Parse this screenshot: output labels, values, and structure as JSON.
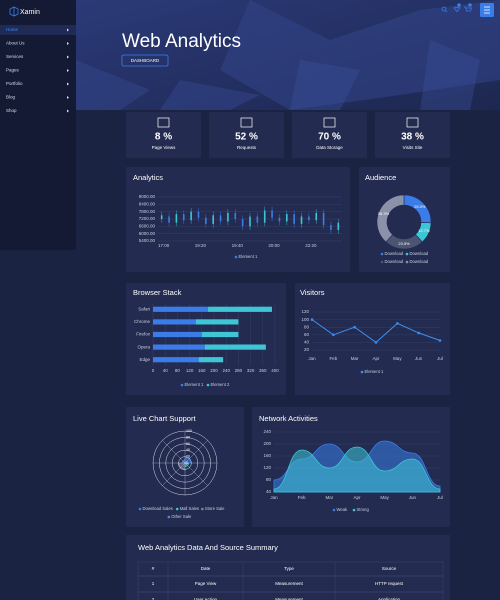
{
  "sidebar": {
    "brand": "Xamin",
    "menu": [
      "Home",
      "About Us",
      "Services",
      "Pages",
      "Portfolio",
      "Blog",
      "Shop"
    ]
  },
  "header": {
    "title": "Web Analytics",
    "button": "DASHBOARD"
  },
  "stats": {
    "labels": [
      "Page Views",
      "Requests",
      "Data Storage",
      "Visits Site"
    ],
    "values": [
      8,
      52,
      70,
      38
    ],
    "value_labels": [
      "8 %",
      "52 %",
      "70 %",
      "38 %"
    ]
  },
  "chart_data": [
    {
      "type": "candlestick",
      "title": "Analytics",
      "xtick_labels": [
        "17:00",
        "19:20",
        "19:40",
        "20:00",
        "22:20"
      ],
      "series": [
        {
          "name": "Element 1",
          "color": "#3b7de8",
          "up_color": "#3ec6d6",
          "down_color": "#3b7de8",
          "open": [
            7200,
            7400,
            6900,
            7600,
            7100,
            7800,
            7300,
            6800,
            7500,
            7000,
            7700,
            7200,
            6600,
            7400,
            6900,
            7900,
            7300,
            7000,
            7600,
            6800,
            7400,
            7100,
            7700,
            6700,
            6300
          ],
          "close": [
            7500,
            6900,
            7600,
            7100,
            7800,
            7300,
            6800,
            7500,
            7000,
            7700,
            7200,
            6600,
            7400,
            6900,
            7900,
            7300,
            7000,
            7600,
            6800,
            7400,
            7100,
            7700,
            6700,
            6300,
            6900
          ],
          "high": [
            7800,
            7700,
            7900,
            7900,
            8100,
            8100,
            7600,
            7800,
            7800,
            8000,
            8000,
            7500,
            7700,
            7700,
            8200,
            8200,
            7600,
            7900,
            7900,
            7700,
            7700,
            8000,
            8000,
            7000,
            7200
          ],
          "low": [
            6900,
            6600,
            6600,
            6800,
            6800,
            7000,
            6500,
            6500,
            6700,
            6700,
            6900,
            6300,
            6300,
            6600,
            6600,
            7000,
            6700,
            6700,
            6500,
            6500,
            6800,
            6800,
            6400,
            6000,
            6000
          ]
        }
      ],
      "ylim": [
        5400,
        9000
      ],
      "yticks": [
        {
          "value": 9000,
          "label": "9000.00"
        },
        {
          "value": 8400,
          "label": "8400.00"
        },
        {
          "value": 7800,
          "label": "7800.00"
        },
        {
          "value": 7200,
          "label": "7200.00"
        },
        {
          "value": 6600,
          "label": "6600.00"
        },
        {
          "value": 6000,
          "label": "6000.00"
        },
        {
          "value": 5400,
          "label": "5400.00"
        }
      ],
      "grid": true
    },
    {
      "type": "donut",
      "title": "Audience",
      "categories": [
        "Download",
        "Download",
        "Download",
        "Download"
      ],
      "values": [
        25.5,
        12.7,
        23.5,
        38.3
      ],
      "value_labels": [
        "25.5%",
        "12.7%",
        "23.5%",
        "38.3%"
      ],
      "colors": [
        "#3b7de8",
        "#3ec6d6",
        "#4b5470",
        "#8a91a8"
      ]
    },
    {
      "type": "hbar",
      "title": "Browser Stack",
      "stacked": true,
      "categories": [
        "Safari",
        "Chrome",
        "Firefox",
        "Opera",
        "Edge"
      ],
      "series": [
        {
          "name": "Element 1",
          "color": "#3b7de8",
          "values": [
            180,
            140,
            160,
            170,
            150
          ]
        },
        {
          "name": "Element 2",
          "color": "#3ec6d6",
          "values": [
            210,
            140,
            120,
            200,
            80
          ]
        }
      ],
      "xlim": [
        0,
        400
      ],
      "xticks": [
        0,
        40,
        80,
        120,
        160,
        200,
        240,
        280,
        320,
        360,
        400
      ],
      "grid": true
    },
    {
      "type": "line",
      "title": "Visitors",
      "categories": [
        "Jan",
        "Feb",
        "Mar",
        "Apr",
        "May",
        "Jun",
        "Jul"
      ],
      "series": [
        {
          "name": "Element 1",
          "color": "#3b8ef0",
          "values": [
            100,
            60,
            80,
            40,
            90,
            65,
            45
          ]
        }
      ],
      "ylim": [
        20,
        120
      ],
      "yticks": [
        20,
        40,
        60,
        80,
        100,
        120
      ],
      "grid": true
    },
    {
      "type": "polarArea",
      "title": "Live Chart Support",
      "categories": [
        "Download Sales",
        "Mall Sales",
        "Store Sale",
        "Other Sale"
      ],
      "values": [
        18,
        12,
        22,
        10
      ],
      "colors": [
        "#3b7de8",
        "#3ec6d6",
        "#7c8399",
        "#5a88d8"
      ],
      "rlim": [
        0,
        100
      ],
      "rticks": [
        0,
        20,
        40,
        60,
        80,
        100
      ]
    },
    {
      "type": "area",
      "title": "Network Activities",
      "categories": [
        "Jan",
        "Feb",
        "Mar",
        "Apr",
        "May",
        "Jun",
        "Jul"
      ],
      "series": [
        {
          "name": "Weak",
          "color": "#3b7de8",
          "values": [
            80,
            150,
            200,
            140,
            210,
            170,
            60
          ]
        },
        {
          "name": "Strong",
          "color": "#3ec6d6",
          "values": [
            50,
            180,
            120,
            190,
            110,
            150,
            50
          ]
        }
      ],
      "ylim": [
        40,
        240
      ],
      "yticks": [
        40,
        80,
        120,
        160,
        200,
        240
      ],
      "grid": true
    }
  ],
  "table": {
    "title": "Web Analytics Data And Source Summary",
    "columns": [
      "#",
      "Date",
      "Type",
      "Source"
    ],
    "rows": [
      [
        "1",
        "Page View",
        "Measurement",
        "HTTP request"
      ],
      [
        "2",
        "User Action",
        "Measurement",
        "Application"
      ]
    ]
  }
}
